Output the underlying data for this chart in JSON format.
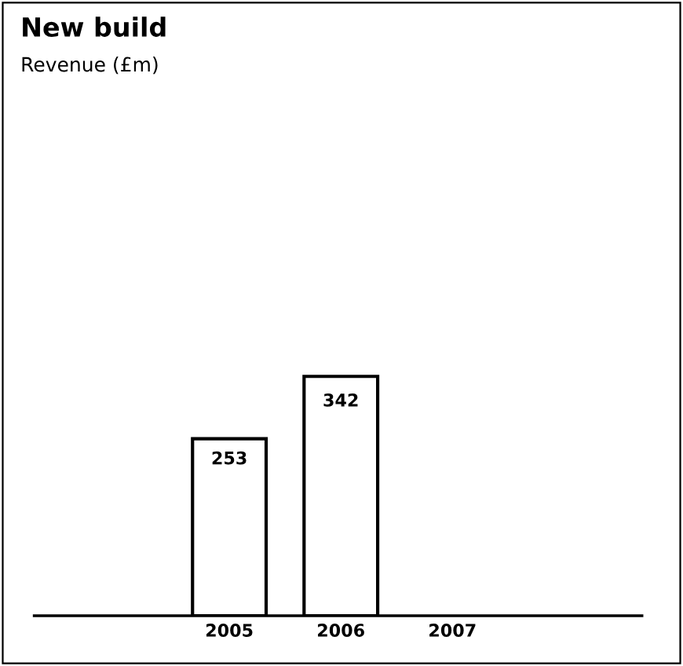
{
  "chart_data": {
    "type": "bar",
    "title": "New build",
    "subtitle": "Revenue (£m)",
    "categories": [
      "2005",
      "2006",
      "2007"
    ],
    "values": [
      253,
      342,
      null
    ],
    "color": "#ffffff",
    "data_labels": true
  }
}
